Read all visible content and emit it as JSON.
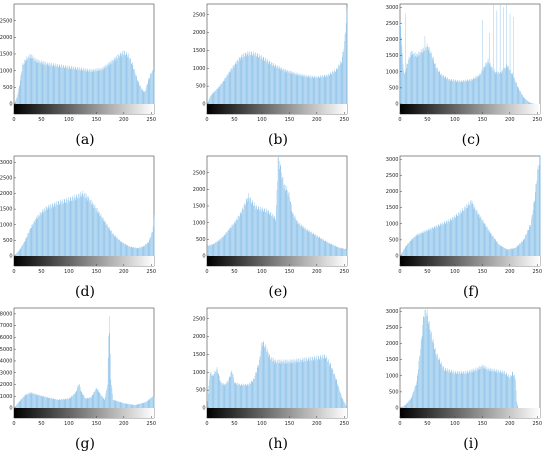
{
  "chart_data": [
    {
      "type": "bar",
      "caption": "(a)",
      "xlim": [
        0,
        255
      ],
      "ylim": [
        0,
        3000
      ],
      "xticks": [
        0,
        50,
        100,
        150,
        200,
        250
      ],
      "yticks": [
        0,
        500,
        1000,
        1500,
        2000,
        2500
      ],
      "ytick_labels": [
        "0",
        "500",
        "1000",
        "1500",
        "2000",
        "2500"
      ],
      "profile": [
        [
          0,
          0
        ],
        [
          5,
          200
        ],
        [
          10,
          600
        ],
        [
          15,
          1150
        ],
        [
          20,
          1300
        ],
        [
          25,
          1400
        ],
        [
          30,
          1450
        ],
        [
          40,
          1300
        ],
        [
          60,
          1200
        ],
        [
          80,
          1150
        ],
        [
          100,
          1100
        ],
        [
          120,
          1050
        ],
        [
          140,
          1000
        ],
        [
          160,
          1050
        ],
        [
          180,
          1300
        ],
        [
          190,
          1450
        ],
        [
          200,
          1550
        ],
        [
          208,
          1450
        ],
        [
          215,
          1200
        ],
        [
          225,
          700
        ],
        [
          232,
          450
        ],
        [
          238,
          350
        ],
        [
          244,
          700
        ],
        [
          250,
          950
        ],
        [
          255,
          1000
        ]
      ]
    },
    {
      "type": "bar",
      "caption": "(b)",
      "xlim": [
        0,
        255
      ],
      "ylim": [
        0,
        2800
      ],
      "xticks": [
        0,
        50,
        100,
        150,
        200,
        250
      ],
      "yticks": [
        0,
        500,
        1000,
        1500,
        2000,
        2500
      ],
      "ytick_labels": [
        "0",
        "500",
        "1000",
        "1500",
        "2000",
        "2500"
      ],
      "profile": [
        [
          0,
          0
        ],
        [
          5,
          200
        ],
        [
          10,
          300
        ],
        [
          20,
          450
        ],
        [
          30,
          650
        ],
        [
          45,
          1000
        ],
        [
          60,
          1300
        ],
        [
          70,
          1400
        ],
        [
          80,
          1420
        ],
        [
          90,
          1380
        ],
        [
          100,
          1300
        ],
        [
          120,
          1100
        ],
        [
          140,
          950
        ],
        [
          160,
          850
        ],
        [
          180,
          780
        ],
        [
          200,
          750
        ],
        [
          220,
          800
        ],
        [
          235,
          950
        ],
        [
          245,
          1200
        ],
        [
          250,
          1700
        ],
        [
          253,
          2300
        ],
        [
          255,
          2700
        ]
      ]
    },
    {
      "type": "bar",
      "caption": "(c)",
      "xlim": [
        0,
        255
      ],
      "ylim": [
        0,
        3100
      ],
      "xticks": [
        0,
        50,
        100,
        150,
        200,
        250
      ],
      "yticks": [
        0,
        500,
        1000,
        1500,
        2000,
        2500,
        3000
      ],
      "ytick_labels": [
        "0",
        "500",
        "1000",
        "1500",
        "2000",
        "2500",
        "3000"
      ],
      "profile": [
        [
          0,
          2500
        ],
        [
          3,
          1900
        ],
        [
          5,
          1200
        ],
        [
          8,
          900
        ],
        [
          12,
          1200
        ],
        [
          20,
          1600
        ],
        [
          30,
          1500
        ],
        [
          40,
          1650
        ],
        [
          50,
          1800
        ],
        [
          58,
          1500
        ],
        [
          65,
          1150
        ],
        [
          75,
          900
        ],
        [
          90,
          750
        ],
        [
          110,
          700
        ],
        [
          130,
          750
        ],
        [
          145,
          900
        ],
        [
          155,
          1200
        ],
        [
          160,
          1350
        ],
        [
          168,
          1100
        ],
        [
          175,
          950
        ],
        [
          185,
          1000
        ],
        [
          195,
          1200
        ],
        [
          205,
          900
        ],
        [
          215,
          500
        ],
        [
          225,
          200
        ],
        [
          235,
          50
        ],
        [
          245,
          0
        ],
        [
          255,
          0
        ]
      ],
      "spikes": [
        [
          10,
          2800
        ],
        [
          45,
          2100
        ],
        [
          150,
          2600
        ],
        [
          163,
          2200
        ],
        [
          170,
          3100
        ],
        [
          176,
          2900
        ],
        [
          182,
          3100
        ],
        [
          188,
          3000
        ],
        [
          194,
          3100
        ],
        [
          200,
          2800
        ],
        [
          206,
          2700
        ]
      ]
    },
    {
      "type": "bar",
      "caption": "(d)",
      "xlim": [
        0,
        255
      ],
      "ylim": [
        0,
        3200
      ],
      "xticks": [
        0,
        50,
        100,
        150,
        200,
        250
      ],
      "yticks": [
        0,
        500,
        1000,
        1500,
        2000,
        2500,
        3000
      ],
      "ytick_labels": [
        "0",
        "500",
        "1000",
        "1500",
        "2000",
        "2500",
        "3000"
      ],
      "profile": [
        [
          0,
          0
        ],
        [
          10,
          200
        ],
        [
          20,
          500
        ],
        [
          30,
          900
        ],
        [
          40,
          1200
        ],
        [
          50,
          1400
        ],
        [
          60,
          1550
        ],
        [
          80,
          1700
        ],
        [
          100,
          1800
        ],
        [
          115,
          1900
        ],
        [
          125,
          2000
        ],
        [
          135,
          1850
        ],
        [
          150,
          1500
        ],
        [
          165,
          1100
        ],
        [
          180,
          700
        ],
        [
          195,
          450
        ],
        [
          210,
          300
        ],
        [
          225,
          250
        ],
        [
          235,
          300
        ],
        [
          245,
          450
        ],
        [
          252,
          800
        ],
        [
          255,
          1300
        ]
      ]
    },
    {
      "type": "bar",
      "caption": "(e)",
      "xlim": [
        0,
        255
      ],
      "ylim": [
        0,
        3000
      ],
      "xticks": [
        0,
        50,
        100,
        150,
        200,
        250
      ],
      "yticks": [
        0,
        500,
        1000,
        1500,
        2000,
        2500
      ],
      "ytick_labels": [
        "0",
        "500",
        "1000",
        "1500",
        "2000",
        "2500"
      ],
      "profile": [
        [
          0,
          300
        ],
        [
          10,
          350
        ],
        [
          20,
          450
        ],
        [
          30,
          600
        ],
        [
          40,
          800
        ],
        [
          50,
          1000
        ],
        [
          60,
          1250
        ],
        [
          70,
          1600
        ],
        [
          75,
          1800
        ],
        [
          80,
          1650
        ],
        [
          90,
          1450
        ],
        [
          100,
          1400
        ],
        [
          110,
          1350
        ],
        [
          120,
          1200
        ],
        [
          125,
          1100
        ],
        [
          128,
          2300
        ],
        [
          130,
          2900
        ],
        [
          135,
          2500
        ],
        [
          140,
          2100
        ],
        [
          145,
          2000
        ],
        [
          150,
          1800
        ],
        [
          155,
          1300
        ],
        [
          165,
          1000
        ],
        [
          180,
          800
        ],
        [
          200,
          600
        ],
        [
          220,
          400
        ],
        [
          240,
          250
        ],
        [
          255,
          200
        ]
      ],
      "spikes": [
        [
          129,
          2950
        ],
        [
          131,
          2850
        ],
        [
          133,
          2750
        ]
      ]
    },
    {
      "type": "bar",
      "caption": "(f)",
      "xlim": [
        0,
        255
      ],
      "ylim": [
        0,
        3100
      ],
      "xticks": [
        0,
        50,
        100,
        150,
        200,
        250
      ],
      "yticks": [
        0,
        500,
        1000,
        1500,
        2000,
        2500,
        3000
      ],
      "ytick_labels": [
        "0",
        "500",
        "1000",
        "1500",
        "2000",
        "2500",
        "3000"
      ],
      "profile": [
        [
          0,
          0
        ],
        [
          10,
          300
        ],
        [
          20,
          500
        ],
        [
          30,
          650
        ],
        [
          50,
          800
        ],
        [
          70,
          950
        ],
        [
          90,
          1100
        ],
        [
          110,
          1350
        ],
        [
          125,
          1600
        ],
        [
          130,
          1700
        ],
        [
          135,
          1500
        ],
        [
          150,
          1100
        ],
        [
          165,
          700
        ],
        [
          180,
          350
        ],
        [
          195,
          200
        ],
        [
          210,
          250
        ],
        [
          225,
          500
        ],
        [
          238,
          1000
        ],
        [
          245,
          1800
        ],
        [
          250,
          2600
        ],
        [
          255,
          3100
        ]
      ]
    },
    {
      "type": "bar",
      "caption": "(g)",
      "xlim": [
        0,
        255
      ],
      "ylim": [
        0,
        8500
      ],
      "xticks": [
        0,
        50,
        100,
        150,
        200,
        250
      ],
      "yticks": [
        0,
        1000,
        2000,
        3000,
        4000,
        5000,
        6000,
        7000,
        8000
      ],
      "ytick_labels": [
        "0",
        "1000",
        "2000",
        "3000",
        "4000",
        "5000",
        "6000",
        "7000",
        "8000"
      ],
      "profile": [
        [
          0,
          0
        ],
        [
          10,
          600
        ],
        [
          20,
          1100
        ],
        [
          30,
          1300
        ],
        [
          40,
          1150
        ],
        [
          60,
          900
        ],
        [
          80,
          700
        ],
        [
          100,
          800
        ],
        [
          112,
          1300
        ],
        [
          118,
          2100
        ],
        [
          122,
          1400
        ],
        [
          130,
          800
        ],
        [
          140,
          900
        ],
        [
          150,
          1700
        ],
        [
          158,
          1100
        ],
        [
          165,
          700
        ],
        [
          170,
          2000
        ],
        [
          173,
          8200
        ],
        [
          176,
          2500
        ],
        [
          180,
          700
        ],
        [
          200,
          400
        ],
        [
          220,
          250
        ],
        [
          240,
          500
        ],
        [
          250,
          900
        ],
        [
          255,
          1000
        ]
      ]
    },
    {
      "type": "bar",
      "caption": "(h)",
      "xlim": [
        0,
        255
      ],
      "ylim": [
        0,
        2800
      ],
      "xticks": [
        0,
        50,
        100,
        150,
        200,
        250
      ],
      "yticks": [
        0,
        500,
        1000,
        1500,
        2000,
        2500
      ],
      "ytick_labels": [
        "0",
        "500",
        "1000",
        "1500",
        "2000",
        "2500"
      ],
      "profile": [
        [
          0,
          0
        ],
        [
          5,
          1000
        ],
        [
          10,
          900
        ],
        [
          18,
          1100
        ],
        [
          25,
          700
        ],
        [
          32,
          650
        ],
        [
          38,
          750
        ],
        [
          45,
          1050
        ],
        [
          50,
          700
        ],
        [
          60,
          650
        ],
        [
          75,
          650
        ],
        [
          85,
          800
        ],
        [
          95,
          1300
        ],
        [
          100,
          1850
        ],
        [
          105,
          1750
        ],
        [
          115,
          1400
        ],
        [
          125,
          1300
        ],
        [
          150,
          1300
        ],
        [
          175,
          1350
        ],
        [
          200,
          1400
        ],
        [
          215,
          1450
        ],
        [
          225,
          1200
        ],
        [
          235,
          800
        ],
        [
          245,
          300
        ],
        [
          255,
          0
        ]
      ]
    },
    {
      "type": "bar",
      "caption": "(i)",
      "xlim": [
        0,
        255
      ],
      "ylim": [
        0,
        3100
      ],
      "xticks": [
        0,
        50,
        100,
        150,
        200,
        250
      ],
      "yticks": [
        0,
        500,
        1000,
        1500,
        2000,
        2500,
        3000
      ],
      "ytick_labels": [
        "0",
        "500",
        "1000",
        "1500",
        "2000",
        "2500",
        "3000"
      ],
      "profile": [
        [
          0,
          0
        ],
        [
          10,
          100
        ],
        [
          20,
          300
        ],
        [
          30,
          800
        ],
        [
          38,
          2000
        ],
        [
          43,
          2900
        ],
        [
          48,
          3000
        ],
        [
          55,
          2400
        ],
        [
          65,
          1700
        ],
        [
          80,
          1200
        ],
        [
          100,
          1100
        ],
        [
          120,
          1100
        ],
        [
          140,
          1200
        ],
        [
          150,
          1300
        ],
        [
          160,
          1200
        ],
        [
          175,
          1150
        ],
        [
          190,
          1100
        ],
        [
          200,
          950
        ],
        [
          205,
          1100
        ],
        [
          210,
          900
        ],
        [
          212,
          200
        ],
        [
          215,
          0
        ],
        [
          255,
          0
        ]
      ]
    }
  ]
}
